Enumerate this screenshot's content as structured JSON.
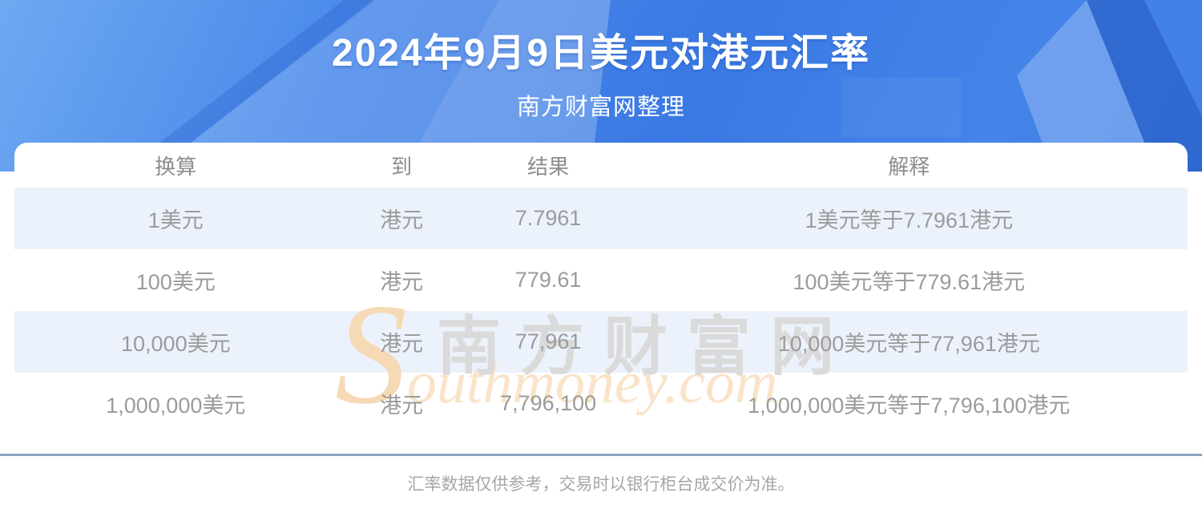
{
  "hero": {
    "title": "2024年9月9日美元对港元汇率",
    "subtitle": "南方财富网整理"
  },
  "table": {
    "headers": [
      "换算",
      "到",
      "结果",
      "解释"
    ],
    "rows": [
      [
        "1美元",
        "港元",
        "7.7961",
        "1美元等于7.7961港元"
      ],
      [
        "100美元",
        "港元",
        "779.61",
        "100美元等于779.61港元"
      ],
      [
        "10,000美元",
        "港元",
        "77,961",
        "10,000美元等于77,961港元"
      ],
      [
        "1,000,000美元",
        "港元",
        "7,796,100",
        "1,000,000美元等于7,796,100港元"
      ]
    ]
  },
  "watermark": {
    "cn": "南方财富网",
    "en": "Southmoney.com"
  },
  "footer": {
    "disclaimer": "汇率数据仅供参考，交易时以银行柜台成交价为准。"
  },
  "colors": {
    "hero_blue": "#3a79e3",
    "row_stripe": "#ecf2fb",
    "divider": "#8ba4bf",
    "text_gray": "#9b9b9b"
  }
}
